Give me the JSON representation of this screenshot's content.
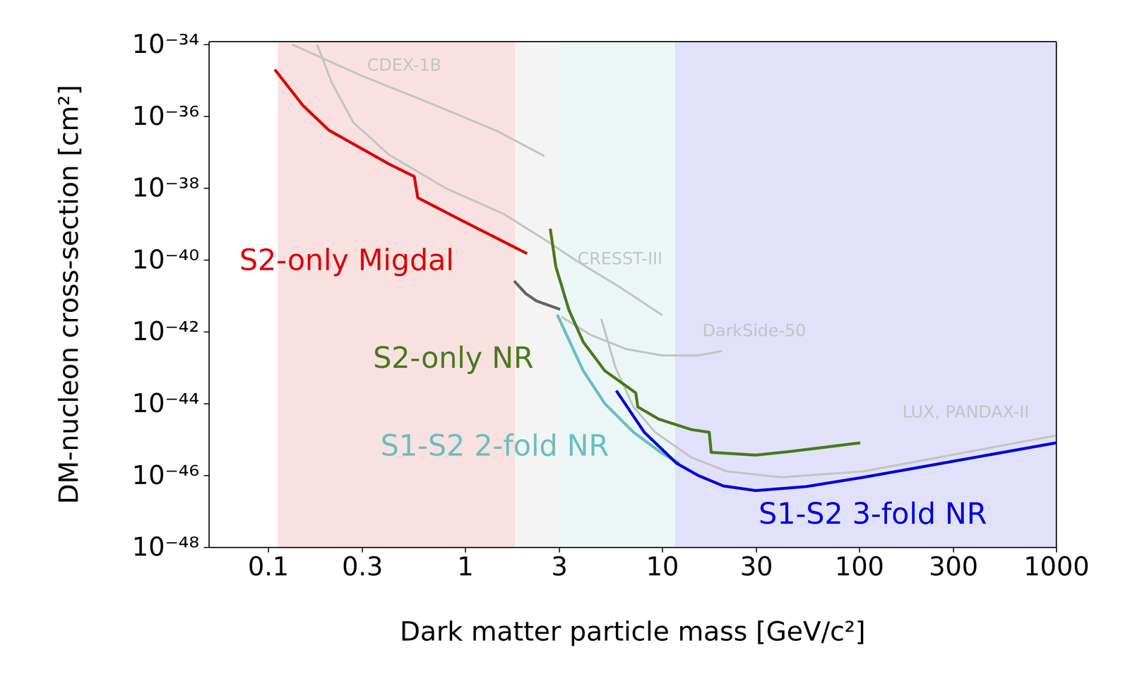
{
  "chart_data": {
    "type": "line",
    "log": true,
    "xlabel": "Dark matter particle mass [GeV/c²]",
    "ylabel": "DM-nucleon cross-section [cm²]",
    "xlim": [
      0.05,
      1000
    ],
    "ylim": [
      1e-48,
      1.2e-34
    ],
    "xticks": [
      0.1,
      0.3,
      1,
      3,
      10,
      30,
      100,
      300,
      1000
    ],
    "yticks": [
      {
        "value": 1e-34,
        "label": "10⁻³⁴"
      },
      {
        "value": 1e-36,
        "label": "10⁻³⁶"
      },
      {
        "value": 1e-38,
        "label": "10⁻³⁸"
      },
      {
        "value": 1e-40,
        "label": "10⁻⁴⁰"
      },
      {
        "value": 1e-42,
        "label": "10⁻⁴²"
      },
      {
        "value": 1e-44,
        "label": "10⁻⁴⁴"
      },
      {
        "value": 1e-46,
        "label": "10⁻⁴⁶"
      },
      {
        "value": 1e-48,
        "label": "10⁻⁴⁸"
      }
    ],
    "bands": [
      {
        "x0": 0.112,
        "x1": 1.79,
        "color": "#f9e1e1"
      },
      {
        "x0": 1.79,
        "x1": 3.02,
        "color": "#f4f4f4"
      },
      {
        "x0": 3.02,
        "x1": 11.6,
        "color": "#ecf6f6"
      },
      {
        "x0": 11.6,
        "x1": 1000,
        "color": "#e1e1fb"
      }
    ],
    "series": [
      {
        "name": "CDEX-1B",
        "color": "#c4c4c4",
        "label_x": 0.49,
        "label_y": 2.7e-35,
        "x": [
          0.132,
          0.293,
          0.68,
          1.45,
          2.52
        ],
        "values": [
          1e-34,
          1.4e-35,
          2.2e-36,
          3.9e-37,
          7.8e-38
        ]
      },
      {
        "name": "CRESST-III",
        "color": "#c4c4c4",
        "label_x": 6.1,
        "label_y": 1.1e-40,
        "x": [
          0.177,
          0.21,
          0.27,
          0.41,
          0.8,
          1.57,
          2.61,
          3.65,
          6.04,
          10
        ],
        "values": [
          1e-34,
          8.7e-36,
          6.8e-37,
          8.5e-38,
          9.8e-39,
          1.9e-39,
          3.3e-40,
          9.6e-41,
          1.8e-41,
          2.9e-42
        ]
      },
      {
        "name": "DarkSide-50",
        "color": "#c4c4c4",
        "label_x": 29.3,
        "label_y": 1.1e-42,
        "x": [
          3.08,
          4.31,
          6.56,
          10,
          15.2,
          20.1
        ],
        "values": [
          2.6e-42,
          8.3e-43,
          3.3e-43,
          2.2e-43,
          2.2e-43,
          2.9e-43
        ]
      },
      {
        "name": "LUX, PANDAX-II",
        "color": "#c4c4c4",
        "label_x": 347,
        "label_y": 5.9e-45,
        "x": [
          4.9,
          5.79,
          7.14,
          9.2,
          14.0,
          21.3,
          40,
          105,
          1000
        ],
        "values": [
          2.3e-42,
          1e-43,
          8.1e-45,
          1.6e-45,
          3.2e-46,
          1.3e-46,
          8.9e-47,
          1.3e-46,
          1.3e-45
        ]
      },
      {
        "color": "#666666",
        "x": [
          1.77,
          2.03,
          2.3,
          3.03
        ],
        "values": [
          2.6e-41,
          1.15e-41,
          7.2e-42,
          4.2e-42
        ]
      },
      {
        "name": "S2-only Migdal",
        "color": "#dd0000",
        "label_x": 0.25,
        "label_y": 1e-40,
        "x": [
          0.108,
          0.15,
          0.203,
          0.41,
          0.551,
          0.574,
          0.95,
          2.06
        ],
        "values": [
          2e-35,
          2e-36,
          4.1e-37,
          4.7e-38,
          2.1e-38,
          5.4e-39,
          1.3e-39,
          1.5e-40
        ]
      },
      {
        "name": "S2-only NR",
        "color": "#4a7a1e",
        "label_x": 0.87,
        "label_y": 1.9e-43,
        "x": [
          2.7,
          2.88,
          3.35,
          3.97,
          5.11,
          7.33,
          7.51,
          9.6,
          14.0,
          17.3,
          17.7,
          29.8,
          45.4,
          101
        ],
        "values": [
          7.4e-40,
          6.6e-41,
          4.2e-42,
          5.2e-43,
          8.2e-44,
          2e-44,
          8.1e-45,
          3.7e-45,
          1.9e-45,
          1.6e-45,
          4.4e-46,
          3.7e-46,
          4.7e-46,
          8.1e-46
        ]
      },
      {
        "name": "S1-S2 2-fold NR",
        "color": "#6bbfbf",
        "label_x": 1.41,
        "label_y": 6.8e-46,
        "x": [
          2.93,
          3.97,
          5.11,
          7.14,
          10,
          12.2
        ],
        "values": [
          3e-42,
          8.2e-44,
          1e-44,
          1.6e-45,
          4.1e-46,
          2.2e-46
        ]
      },
      {
        "name": "S1-S2 3-fold NR",
        "color": "#0000e0",
        "label_x": 117,
        "label_y": 8.7e-48,
        "x": [
          5.84,
          8.1,
          11.8,
          15.2,
          20.4,
          29.8,
          53.7,
          105,
          1000
        ],
        "values": [
          2.3e-44,
          1.6e-45,
          2.2e-46,
          1e-46,
          5.1e-47,
          3.8e-47,
          4.9e-47,
          8.9e-47,
          8.1e-46
        ]
      }
    ]
  }
}
